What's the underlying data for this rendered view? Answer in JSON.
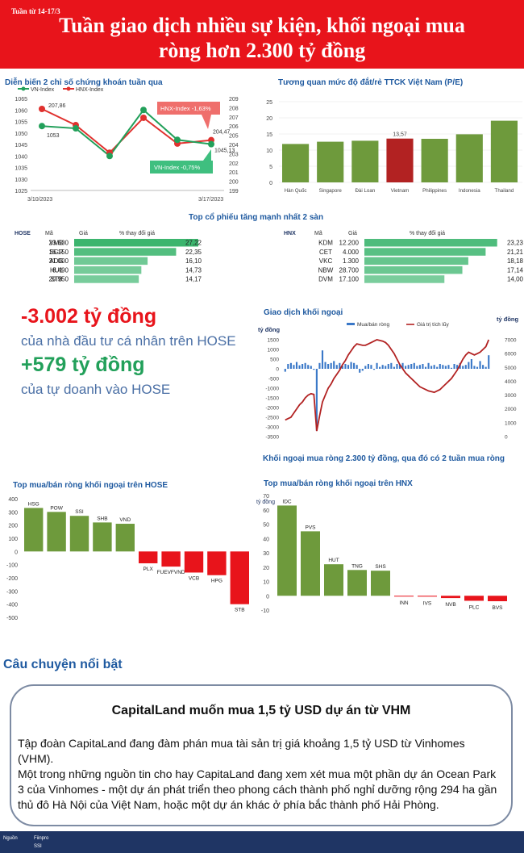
{
  "header": {
    "week": "Tuần từ 14-17/3",
    "title_line1": "Tuần giao dịch nhiều sự kiện, khối ngoại mua",
    "title_line2": "ròng hơn 2.300 tỷ đồng"
  },
  "index_chart": {
    "title": "Diễn biến 2 chỉ số chứng khoán tuần qua",
    "legend": [
      "VN-Index",
      "HNX-Index"
    ],
    "x_first": "3/10/2023",
    "x_last": "3/17/2023",
    "left_ticks": [
      "1065",
      "1060",
      "1055",
      "1050",
      "1045",
      "1040",
      "1035",
      "1030",
      "1025"
    ],
    "right_ticks": [
      "209",
      "208",
      "207",
      "206",
      "205",
      "204",
      "203",
      "202",
      "201",
      "200",
      "199"
    ],
    "labels": {
      "vn_start": "1053",
      "hnx_start": "207,86",
      "hnx_end": "204,47",
      "vn_end": "1045,13"
    },
    "callouts": {
      "hnx": "HNX-Index -1,63%",
      "vn": "VN-Index -0,75%"
    }
  },
  "pe_chart": {
    "title": "Tương quan mức độ đắt/rẻ TTCK Việt Nam (P/E)",
    "y_ticks": [
      "0",
      "5",
      "10",
      "15",
      "20",
      "25"
    ],
    "highlight_label": "13,57"
  },
  "top_gainers": {
    "title": "Top cổ phiếu tăng mạnh nhất 2 sàn",
    "hose": {
      "exchange": "HOSE",
      "col_code": "Mã",
      "col_price": "Giá",
      "col_change": "% thay đổi giá",
      "rows": [
        {
          "code": "VMD",
          "price": "23.600",
          "change": "27,22",
          "pct": 27.22
        },
        {
          "code": "SGR",
          "price": "16.150",
          "change": "22,35",
          "pct": 22.35
        },
        {
          "code": "ADG",
          "price": "31.000",
          "change": "16,10",
          "pct": 16.1
        },
        {
          "code": "HU1",
          "price": "8.490",
          "change": "14,73",
          "pct": 14.73
        },
        {
          "code": "ST8",
          "price": "20.950",
          "change": "14,17",
          "pct": 14.17
        }
      ]
    },
    "hnx": {
      "exchange": "HNX",
      "col_code": "Mã",
      "col_price": "Giá",
      "col_change": "% thay đổi giá",
      "rows": [
        {
          "code": "KDM",
          "price": "12.200",
          "change": "23,23",
          "pct": 23.23
        },
        {
          "code": "CET",
          "price": "4.000",
          "change": "21,21",
          "pct": 21.21
        },
        {
          "code": "VKC",
          "price": "1.300",
          "change": "18,18",
          "pct": 18.18
        },
        {
          "code": "NBW",
          "price": "28.700",
          "change": "17,14",
          "pct": 17.14
        },
        {
          "code": "DVM",
          "price": "17.100",
          "change": "14,00",
          "pct": 14.0
        }
      ]
    }
  },
  "highlights": {
    "stat1": "-3.002 tỷ đồng",
    "stat1_desc": "của nhà đầu tư cá nhân trên HOSE",
    "stat2": "+579 tỷ đồng",
    "stat2_desc": "của tự doanh vào HOSE"
  },
  "foreign_chart": {
    "title": "Giao dịch khối ngoại",
    "unit_left": "tỷ đồng",
    "unit_right": "tỷ đồng",
    "legend_bar": "Mua/bán ròng",
    "legend_line": "Giá trị tích lũy",
    "left_ticks": [
      "1500",
      "1000",
      "500",
      "0",
      "-500",
      "-1000",
      "-1500",
      "-2000",
      "-2500",
      "-3000",
      "-3500"
    ],
    "right_ticks": [
      "7000",
      "6000",
      "5000",
      "4000",
      "3000",
      "2000",
      "1000",
      "0"
    ],
    "caption": "Khối ngoại mua ròng 2.300 tỷ đồng, qua đó có 2 tuần mua ròng"
  },
  "chart_data": [
    {
      "type": "line",
      "title": "Diễn biến 2 chỉ số chứng khoán tuần qua",
      "x": [
        "3/10/2023",
        "3/13/2023",
        "3/14/2023",
        "3/15/2023",
        "3/16/2023",
        "3/17/2023"
      ],
      "series": [
        {
          "name": "VN-Index",
          "axis": "left",
          "values": [
            1053,
            1052,
            1040,
            1060,
            1047,
            1045.13
          ]
        },
        {
          "name": "HNX-Index",
          "axis": "right",
          "values": [
            207.86,
            206.1,
            203.1,
            206.9,
            204.1,
            204.47
          ]
        }
      ],
      "ylim_left": [
        1025,
        1065
      ],
      "ylim_right": [
        199,
        209
      ]
    },
    {
      "type": "bar",
      "title": "Tương quan mức độ đắt/rẻ TTCK Việt Nam (P/E)",
      "categories": [
        "Hàn Quốc",
        "Singapore",
        "Đài Loan",
        "Vietnam",
        "Philippines",
        "Indonesia",
        "Thailand"
      ],
      "values": [
        11.9,
        12.6,
        12.9,
        13.57,
        13.5,
        14.9,
        19.1
      ],
      "highlight": "Vietnam",
      "ylim": [
        0,
        25
      ]
    },
    {
      "type": "bar",
      "title": "Giao dịch khối ngoại",
      "values": [
        -150,
        250,
        300,
        200,
        350,
        180,
        250,
        300,
        200,
        150,
        -50,
        -3200,
        300,
        950,
        350,
        250,
        300,
        400,
        200,
        300,
        150,
        250,
        200,
        350,
        300,
        200,
        -200,
        -100,
        150,
        250,
        200,
        -50,
        300,
        100,
        200,
        150,
        250,
        300,
        100,
        250,
        200,
        300,
        150,
        200,
        250,
        300,
        150,
        200,
        250,
        100,
        300,
        150,
        200,
        100,
        250,
        200,
        150,
        200,
        50,
        250,
        200,
        300,
        150,
        200,
        350,
        500,
        150,
        100,
        400,
        200,
        100,
        700
      ],
      "line": {
        "name": "Giá trị tích lũy",
        "values": [
          1200,
          1300,
          1400,
          1700,
          2000,
          2300,
          2500,
          2800,
          3000,
          3100,
          3050,
          400,
          1500,
          2500,
          3000,
          3500,
          3800,
          4200,
          4500,
          4800,
          5200,
          5500,
          5900,
          6200,
          6500,
          6700,
          6650,
          6600,
          6600,
          6700,
          6800,
          6900,
          7000,
          6950,
          6900,
          6800,
          6600,
          6300,
          6000,
          5600,
          5200,
          4900,
          4600,
          4400,
          4200,
          4000,
          3800,
          3600,
          3500,
          3400,
          3300,
          3250,
          3200,
          3300,
          3400,
          3600,
          3800,
          4000,
          4200,
          4500,
          4800,
          5200,
          5600,
          5900,
          6100,
          6000,
          5900,
          6000,
          6100,
          6300,
          6500,
          7000
        ]
      },
      "ylim_left": [
        -3500,
        1500
      ],
      "ylim_right": [
        0,
        7000
      ],
      "unit": "tỷ đồng"
    },
    {
      "type": "bar",
      "title": "Top mua/bán ròng khối ngoại trên HOSE",
      "categories": [
        "HSG",
        "POW",
        "SSI",
        "SHB",
        "VND",
        "PLX",
        "FUEVFVND",
        "VCB",
        "HPG",
        "STB"
      ],
      "values": [
        330,
        300,
        270,
        220,
        210,
        -90,
        -115,
        -160,
        -180,
        -400
      ],
      "ylim": [
        -500,
        300
      ]
    },
    {
      "type": "bar",
      "title": "Top mua/bán ròng khối ngoại trên HNX",
      "categories": [
        "IDC",
        "PVS",
        "HUT",
        "TNG",
        "SHS",
        "INN",
        "IVS",
        "NVB",
        "PLC",
        "BVS"
      ],
      "values": [
        63,
        45,
        22,
        18,
        17.5,
        -0.5,
        -0.6,
        -1.6,
        -3.5,
        -3.8
      ],
      "ylim": [
        -10,
        70
      ],
      "unit": "tỷ đồng"
    }
  ],
  "hose_foreign": {
    "title": "Top mua/bán ròng khối ngoại trên HOSE",
    "y_ticks": [
      "400",
      "300",
      "200",
      "100",
      "0",
      "-100",
      "-200",
      "-300",
      "-400",
      "-500"
    ]
  },
  "hnx_foreign": {
    "title": "Top mua/bán ròng khối ngoại trên HNX",
    "unit": "tỷ đồng",
    "y_ticks": [
      "70",
      "60",
      "50",
      "40",
      "30",
      "20",
      "10",
      "0",
      "-10"
    ]
  },
  "story": {
    "heading": "Câu chuyện nổi bật",
    "title": "CapitalLand muốn mua 1,5 tỷ USD dự án từ VHM",
    "p1": "Tập đoàn CapitaLand đang đàm phán mua tài sản trị giá khoảng 1,5 tỷ USD từ Vinhomes (VHM).",
    "p2": "Một trong những nguồn tin cho hay CapitaLand đang xem xét mua một phần dự án Ocean Park 3 của Vinhomes - một dự án phát triển theo phong cách thành phố nghỉ dưỡng rộng 294 ha gần thủ đô Hà Nội của Việt Nam, hoặc một dự án khác ở phía bắc thành phố Hải Phòng."
  },
  "footer": {
    "label": "Nguồn",
    "src1": "Fiinpro",
    "src2": "SSI"
  },
  "colors": {
    "red": "#e8141b",
    "green_bar": "#6e9a3c",
    "vn_line": "#22a05a",
    "hnx_line": "#e0312e",
    "blue": "#1f5aa0",
    "bar_blue": "#3a78c8",
    "dark_red": "#b22222"
  }
}
